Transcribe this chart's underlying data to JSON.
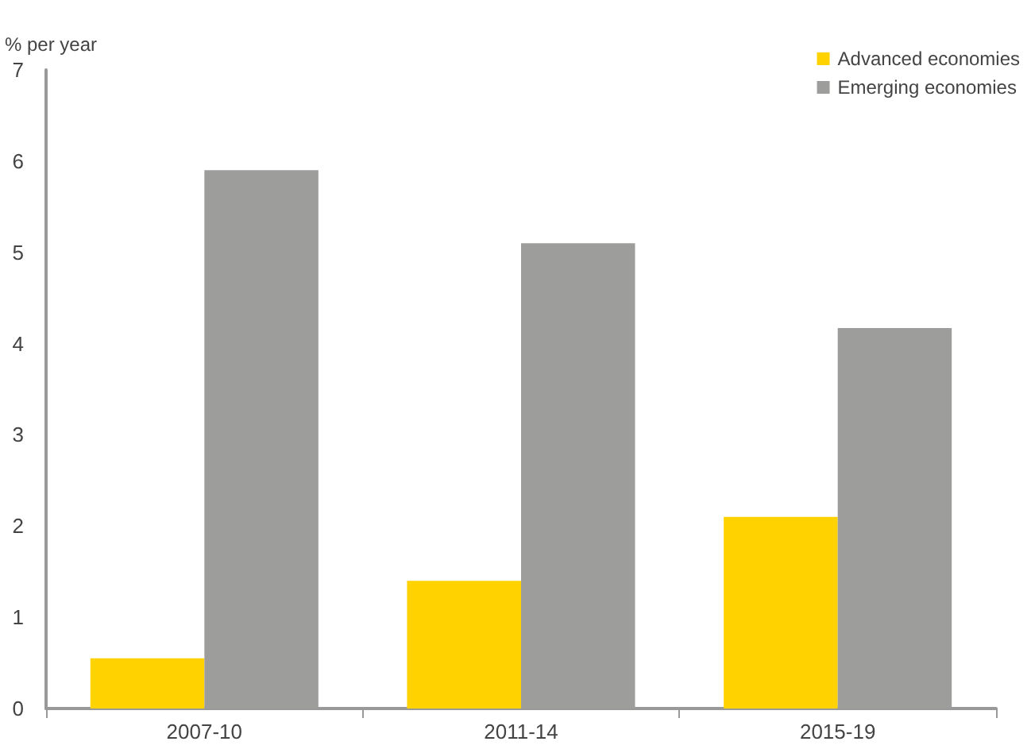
{
  "chart_data": {
    "type": "bar",
    "ylabel": "% per year",
    "categories": [
      "2007-10",
      "2011-14",
      "2015-19"
    ],
    "series": [
      {
        "name": "Advanced economies",
        "color": "#ffd200",
        "values": [
          0.55,
          1.4,
          2.1
        ]
      },
      {
        "name": "Emerging economies",
        "color": "#9d9d9c",
        "values": [
          5.9,
          5.1,
          4.17
        ]
      }
    ],
    "ylim": [
      0,
      7
    ],
    "yticks": [
      0,
      1,
      2,
      3,
      4,
      5,
      6,
      7
    ],
    "grid": false,
    "legend": "top right"
  }
}
